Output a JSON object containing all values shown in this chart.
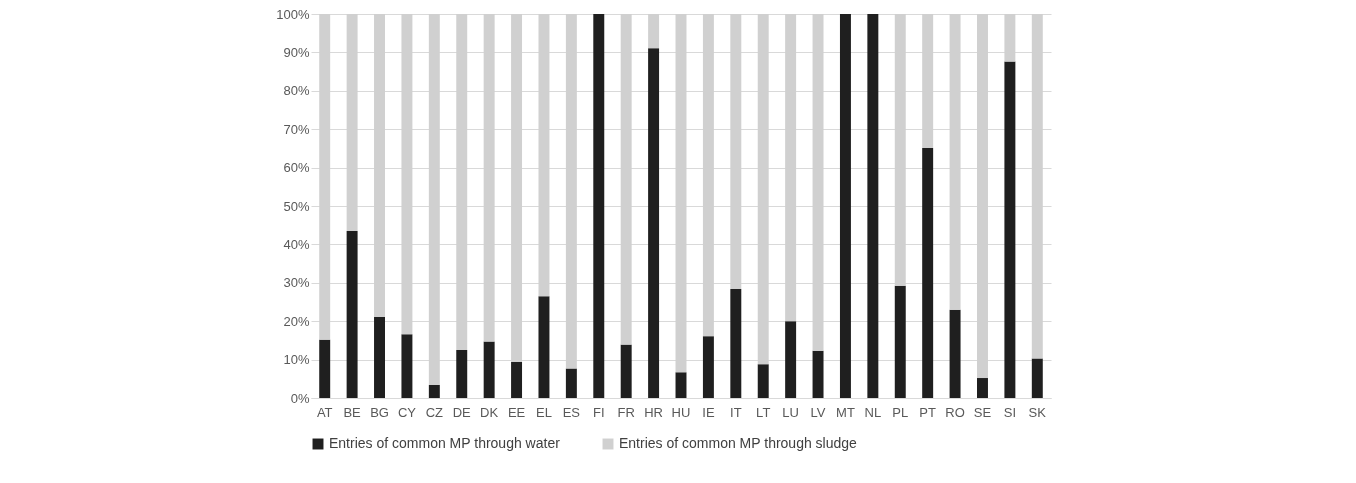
{
  "chart_data": {
    "type": "bar",
    "stacked": true,
    "categories": [
      "AT",
      "BE",
      "BG",
      "CY",
      "CZ",
      "DE",
      "DK",
      "EE",
      "EL",
      "ES",
      "FI",
      "FR",
      "HR",
      "HU",
      "IE",
      "IT",
      "LT",
      "LU",
      "LV",
      "MT",
      "NL",
      "PL",
      "PT",
      "RO",
      "SE",
      "SI",
      "SK"
    ],
    "series": [
      {
        "name": "Entries of common MP through water",
        "color": "#1f1f1f",
        "values": [
          15.2,
          43.5,
          21.1,
          16.6,
          3.4,
          12.5,
          14.7,
          9.4,
          26.5,
          7.7,
          100,
          13.9,
          91.1,
          6.7,
          16.1,
          28.4,
          8.8,
          20.0,
          12.3,
          100,
          100,
          29.2,
          65.1,
          23.0,
          5.2,
          87.6,
          10.3
        ]
      },
      {
        "name": "Entries of common MP through sludge",
        "color": "#d0d0d0",
        "values": [
          84.8,
          56.5,
          78.9,
          83.4,
          96.6,
          87.5,
          85.3,
          90.6,
          73.5,
          92.3,
          0,
          86.1,
          8.9,
          93.3,
          83.9,
          71.6,
          91.2,
          80.0,
          87.7,
          0,
          0,
          70.8,
          34.9,
          77.0,
          94.8,
          12.4,
          89.7
        ]
      }
    ],
    "ylim": [
      0,
      100
    ],
    "yticks": [
      {
        "value": 0,
        "label": "0%"
      },
      {
        "value": 10,
        "label": "10%"
      },
      {
        "value": 20,
        "label": "20%"
      },
      {
        "value": 30,
        "label": "30%"
      },
      {
        "value": 40,
        "label": "40%"
      },
      {
        "value": 50,
        "label": "50%"
      },
      {
        "value": 60,
        "label": "60%"
      },
      {
        "value": 70,
        "label": "70%"
      },
      {
        "value": 80,
        "label": "80%"
      },
      {
        "value": 90,
        "label": "90%"
      },
      {
        "value": 100,
        "label": "100%"
      }
    ],
    "grid": "y",
    "legend": "bottom"
  }
}
